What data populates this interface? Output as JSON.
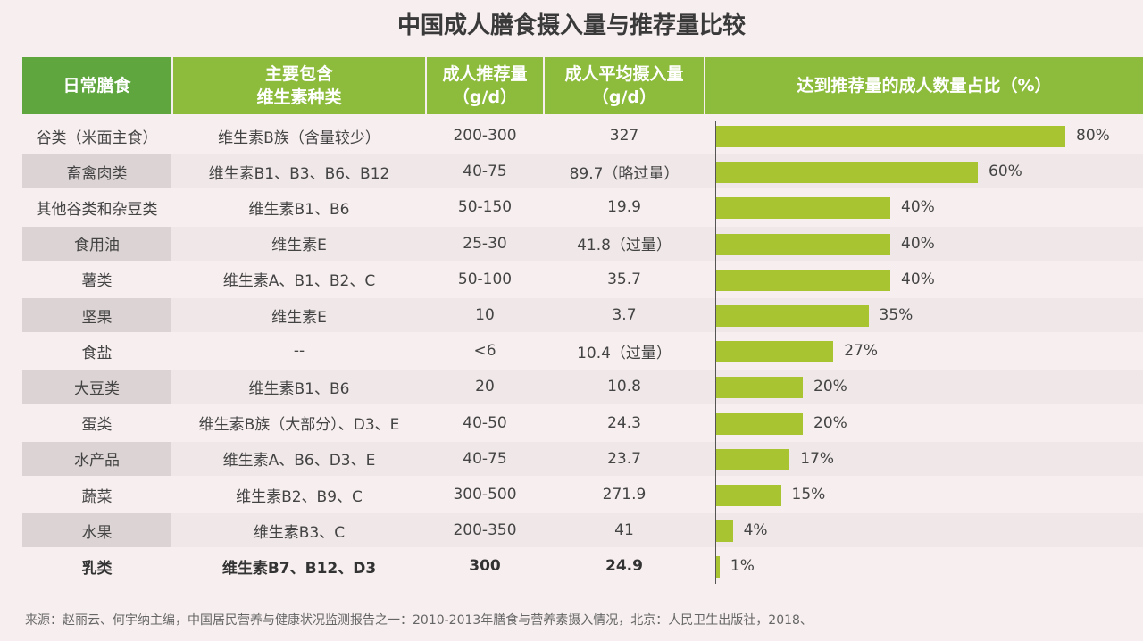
{
  "title": "中国成人膳食摄入量与推荐量比较",
  "headers": [
    "日常膳食",
    "主要包含\n维生素种类",
    "成人推荐量\n（g/d）",
    "成人平均摄入量\n（g/d）",
    "达到推荐量的成人数量占比（%）"
  ],
  "colors": {
    "header_first": "#5fa63e",
    "header": "#8dbb3c",
    "bar": "#a8c431",
    "background": "#f7eeef"
  },
  "chart_data": {
    "type": "bar",
    "orientation": "horizontal",
    "title": "达到推荐量的成人数量占比（%）",
    "categories": [
      "谷类（米面主食）",
      "畜禽肉类",
      "其他谷类和杂豆类",
      "食用油",
      "薯类",
      "坚果",
      "食盐",
      "大豆类",
      "蛋类",
      "水产品",
      "蔬菜",
      "水果",
      "乳类"
    ],
    "values": [
      80,
      60,
      40,
      40,
      40,
      35,
      27,
      20,
      20,
      17,
      15,
      4,
      1
    ],
    "labels": [
      "80%",
      "60%",
      "40%",
      "40%",
      "40%",
      "35%",
      "27%",
      "20%",
      "20%",
      "17%",
      "15%",
      "4%",
      "1%"
    ],
    "xlim": [
      0,
      100
    ],
    "grid": false
  },
  "rows": [
    {
      "food": "谷类（米面主食）",
      "vitamins": "维生素B族（含量较少）",
      "recommended": "200-300",
      "average": "327"
    },
    {
      "food": "畜禽肉类",
      "vitamins": "维生素B1、B3、B6、B12",
      "recommended": "40-75",
      "average": "89.7（略过量）"
    },
    {
      "food": "其他谷类和杂豆类",
      "vitamins": "维生素B1、B6",
      "recommended": "50-150",
      "average": "19.9"
    },
    {
      "food": "食用油",
      "vitamins": "维生素E",
      "recommended": "25-30",
      "average": "41.8（过量）"
    },
    {
      "food": "薯类",
      "vitamins": "维生素A、B1、B2、C",
      "recommended": "50-100",
      "average": "35.7"
    },
    {
      "food": "坚果",
      "vitamins": "维生素E",
      "recommended": "10",
      "average": "3.7"
    },
    {
      "food": "食盐",
      "vitamins": "--",
      "recommended": "<6",
      "average": "10.4（过量）"
    },
    {
      "food": "大豆类",
      "vitamins": "维生素B1、B6",
      "recommended": "20",
      "average": "10.8"
    },
    {
      "food": "蛋类",
      "vitamins": "维生素B族（大部分）、D3、E",
      "recommended": "40-50",
      "average": "24.3"
    },
    {
      "food": "水产品",
      "vitamins": "维生素A、B6、D3、E",
      "recommended": "40-75",
      "average": "23.7"
    },
    {
      "food": "蔬菜",
      "vitamins": "维生素B2、B9、C",
      "recommended": "300-500",
      "average": "271.9"
    },
    {
      "food": "水果",
      "vitamins": "维生素B3、C",
      "recommended": "200-350",
      "average": "41"
    },
    {
      "food": "乳类",
      "vitamins": "维生素B7、B12、D3",
      "recommended": "300",
      "average": "24.9"
    }
  ],
  "source": "来源：赵丽云、何宇纳主编，中国居民营养与健康状况监测报告之一：2010-2013年膳食与营养素摄入情况，北京：人民卫生出版社，2018、"
}
